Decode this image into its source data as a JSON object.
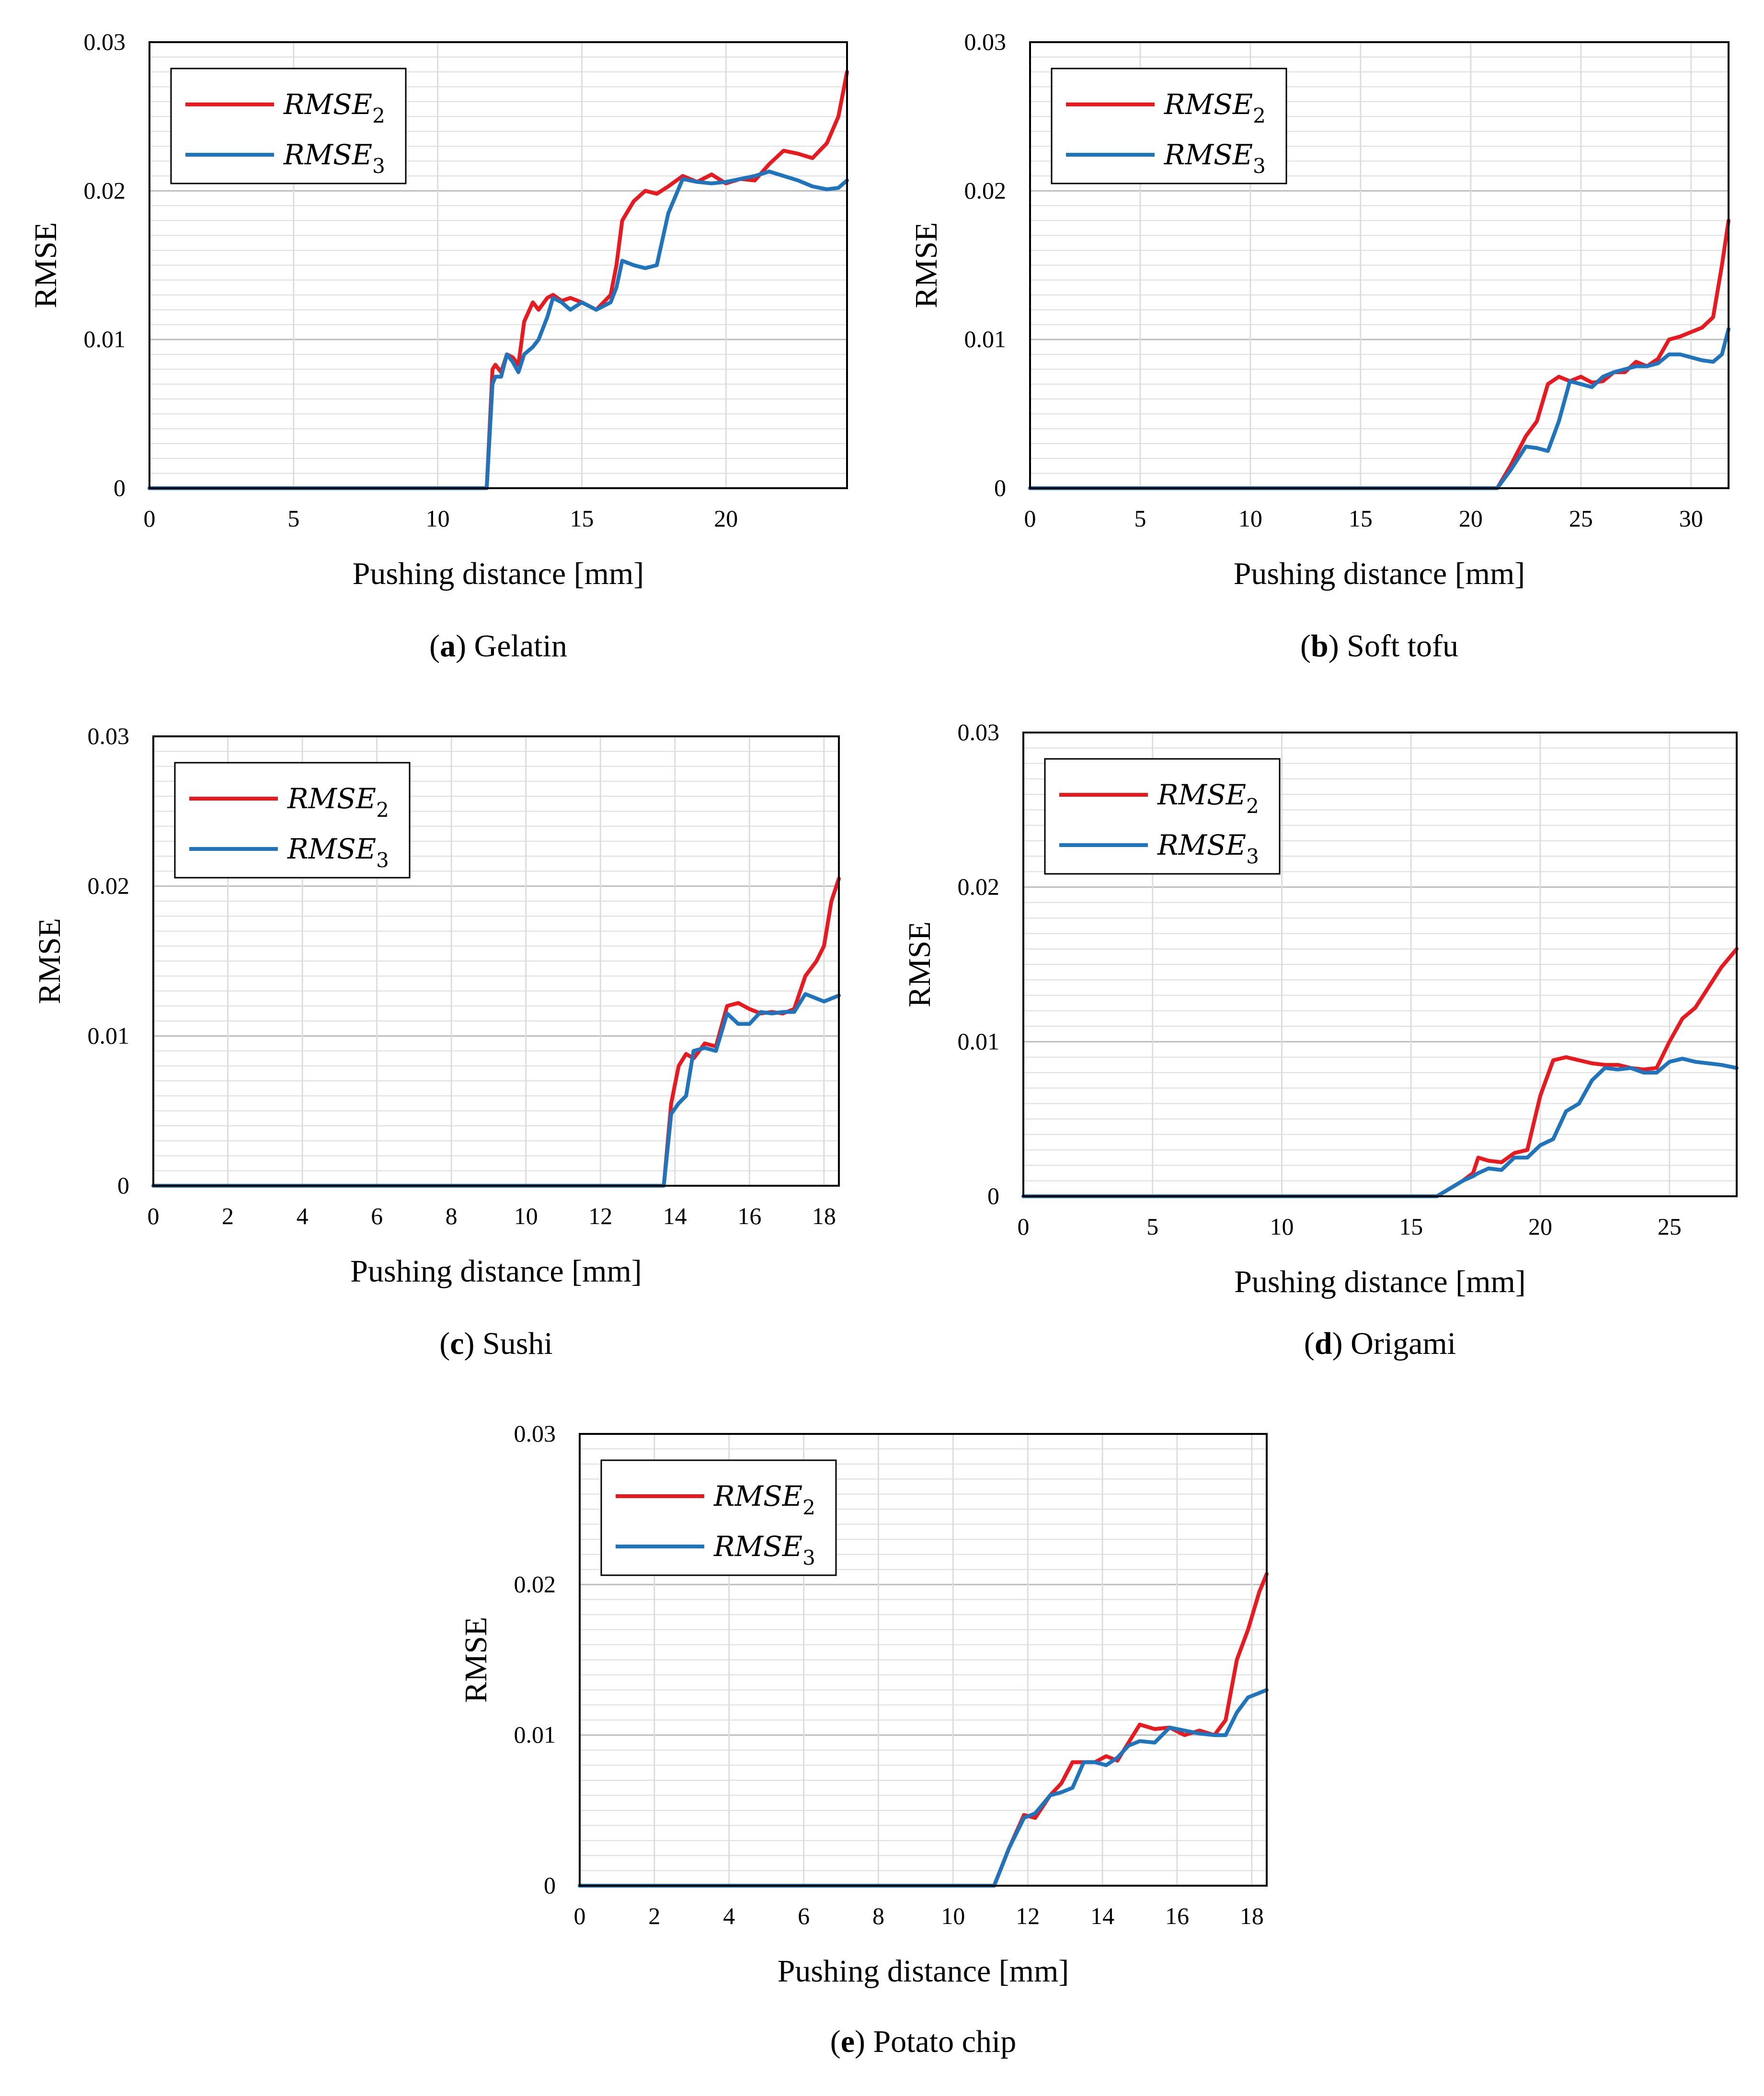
{
  "figure": {
    "colors": {
      "rmse2": "#e8191f",
      "rmse3": "#1f74bc",
      "grid_minor": "#dddddd",
      "grid_major": "#bdbdbd"
    },
    "legend": {
      "series": [
        {
          "name": "RMSE",
          "sub": "2",
          "color": "#e8191f"
        },
        {
          "name": "RMSE",
          "sub": "3",
          "color": "#1f74bc"
        }
      ]
    }
  },
  "chart_data": [
    {
      "type": "line",
      "caption": {
        "letter": "a",
        "text": "Gelatin"
      },
      "xlabel": "Pushing distance [mm]",
      "ylabel": "RMSE",
      "xlim": [
        0,
        24.2
      ],
      "ylim": [
        0,
        0.03
      ],
      "xticks": [
        0,
        5,
        10,
        15,
        20
      ],
      "yticks": [
        0,
        0.01,
        0.02,
        0.03
      ],
      "yticklabels": [
        "0",
        "0.01",
        "0.02",
        "0.03"
      ],
      "legend_position": "top-left",
      "series": [
        {
          "name": "RMSE2",
          "x": [
            0,
            11.7,
            11.9,
            12.0,
            12.2,
            12.4,
            12.6,
            12.8,
            13.0,
            13.3,
            13.5,
            13.8,
            14.0,
            14.3,
            14.6,
            15.0,
            15.5,
            16.0,
            16.2,
            16.4,
            16.8,
            17.2,
            17.6,
            18.0,
            18.5,
            19.0,
            19.5,
            20.0,
            20.5,
            21.0,
            21.5,
            22.0,
            22.5,
            23.0,
            23.5,
            23.9,
            24.2
          ],
          "values": [
            0,
            0,
            0.008,
            0.0083,
            0.0078,
            0.009,
            0.0088,
            0.0083,
            0.0112,
            0.0125,
            0.012,
            0.0128,
            0.013,
            0.0126,
            0.0128,
            0.0125,
            0.012,
            0.013,
            0.015,
            0.018,
            0.0193,
            0.02,
            0.0198,
            0.0203,
            0.021,
            0.0206,
            0.0211,
            0.0205,
            0.0208,
            0.0207,
            0.0218,
            0.0227,
            0.0225,
            0.0222,
            0.0232,
            0.025,
            0.028
          ]
        },
        {
          "name": "RMSE3",
          "x": [
            0,
            11.7,
            11.9,
            12.0,
            12.2,
            12.4,
            12.6,
            12.8,
            13.0,
            13.3,
            13.5,
            13.8,
            14.0,
            14.3,
            14.6,
            15.0,
            15.5,
            16.0,
            16.2,
            16.4,
            16.8,
            17.2,
            17.6,
            18.0,
            18.5,
            19.0,
            19.5,
            20.0,
            20.5,
            21.0,
            21.5,
            22.0,
            22.5,
            23.0,
            23.5,
            23.9,
            24.2
          ],
          "values": [
            0,
            0,
            0.007,
            0.0075,
            0.0075,
            0.009,
            0.0085,
            0.0078,
            0.009,
            0.0095,
            0.01,
            0.0115,
            0.0128,
            0.0125,
            0.012,
            0.0125,
            0.012,
            0.0125,
            0.0135,
            0.0153,
            0.015,
            0.0148,
            0.015,
            0.0185,
            0.0208,
            0.0206,
            0.0205,
            0.0206,
            0.0208,
            0.021,
            0.0213,
            0.021,
            0.0207,
            0.0203,
            0.0201,
            0.0202,
            0.0207
          ]
        }
      ]
    },
    {
      "type": "line",
      "caption": {
        "letter": "b",
        "text": "Soft tofu"
      },
      "xlabel": "Pushing distance [mm]",
      "ylabel": "RMSE",
      "xlim": [
        0,
        31.7
      ],
      "ylim": [
        0,
        0.03
      ],
      "xticks": [
        0,
        5,
        10,
        15,
        20,
        25,
        30
      ],
      "yticks": [
        0,
        0.01,
        0.02,
        0.03
      ],
      "yticklabels": [
        "0",
        "0.01",
        "0.02",
        "0.03"
      ],
      "legend_position": "top-left",
      "series": [
        {
          "name": "RMSE2",
          "x": [
            0,
            21.2,
            21.8,
            22.5,
            23.0,
            23.5,
            24.0,
            24.5,
            25.0,
            25.5,
            26.0,
            26.5,
            27.0,
            27.5,
            28.0,
            28.5,
            29.0,
            29.5,
            30.0,
            30.5,
            31.0,
            31.4,
            31.7
          ],
          "values": [
            0,
            0,
            0.0015,
            0.0035,
            0.0045,
            0.007,
            0.0075,
            0.0072,
            0.0075,
            0.0071,
            0.0072,
            0.0078,
            0.0078,
            0.0085,
            0.0082,
            0.0087,
            0.01,
            0.0102,
            0.0105,
            0.0108,
            0.0115,
            0.015,
            0.018
          ]
        },
        {
          "name": "RMSE3",
          "x": [
            0,
            21.2,
            21.8,
            22.5,
            23.0,
            23.5,
            24.0,
            24.5,
            25.0,
            25.5,
            26.0,
            26.5,
            27.0,
            27.5,
            28.0,
            28.5,
            29.0,
            29.5,
            30.0,
            30.5,
            31.0,
            31.4,
            31.7
          ],
          "values": [
            0,
            0,
            0.0012,
            0.0028,
            0.0027,
            0.0025,
            0.0045,
            0.0072,
            0.007,
            0.0068,
            0.0075,
            0.0078,
            0.008,
            0.0082,
            0.0082,
            0.0084,
            0.009,
            0.009,
            0.0088,
            0.0086,
            0.0085,
            0.009,
            0.0107
          ]
        }
      ]
    },
    {
      "type": "line",
      "caption": {
        "letter": "c",
        "text": "Sushi"
      },
      "xlabel": "Pushing distance [mm]",
      "ylabel": "RMSE",
      "xlim": [
        0,
        18.4
      ],
      "ylim": [
        0,
        0.03
      ],
      "xticks": [
        0,
        2,
        4,
        6,
        8,
        10,
        12,
        14,
        16,
        18
      ],
      "yticks": [
        0,
        0.01,
        0.02,
        0.03
      ],
      "yticklabels": [
        "0",
        "0.01",
        "0.02",
        "0.03"
      ],
      "legend_position": "top-left",
      "series": [
        {
          "name": "RMSE2",
          "x": [
            0,
            13.7,
            13.9,
            14.1,
            14.3,
            14.5,
            14.8,
            15.1,
            15.4,
            15.7,
            16.0,
            16.3,
            16.6,
            16.9,
            17.2,
            17.5,
            17.8,
            18.0,
            18.2,
            18.4
          ],
          "values": [
            0,
            0,
            0.0055,
            0.008,
            0.0088,
            0.0085,
            0.0095,
            0.0093,
            0.012,
            0.0122,
            0.0118,
            0.0115,
            0.0116,
            0.0115,
            0.0118,
            0.014,
            0.015,
            0.016,
            0.019,
            0.0205
          ]
        },
        {
          "name": "RMSE3",
          "x": [
            0,
            13.7,
            13.9,
            14.1,
            14.3,
            14.5,
            14.8,
            15.1,
            15.4,
            15.7,
            16.0,
            16.3,
            16.6,
            16.9,
            17.2,
            17.5,
            17.8,
            18.0,
            18.2,
            18.4
          ],
          "values": [
            0,
            0,
            0.0048,
            0.0055,
            0.006,
            0.009,
            0.0092,
            0.009,
            0.0115,
            0.0108,
            0.0108,
            0.0116,
            0.0115,
            0.0116,
            0.0116,
            0.0128,
            0.0125,
            0.0123,
            0.0125,
            0.0127
          ]
        }
      ]
    },
    {
      "type": "line",
      "caption": {
        "letter": "d",
        "text": "Origami"
      },
      "xlabel": "Pushing distance [mm]",
      "ylabel": "RMSE",
      "xlim": [
        0,
        27.6
      ],
      "ylim": [
        0,
        0.03
      ],
      "xticks": [
        0,
        5,
        10,
        15,
        20,
        25
      ],
      "yticks": [
        0,
        0.01,
        0.02,
        0.03
      ],
      "yticklabels": [
        "0",
        "0.01",
        "0.02",
        "0.03"
      ],
      "legend_position": "top-left",
      "series": [
        {
          "name": "RMSE2",
          "x": [
            0,
            16.0,
            16.5,
            17.0,
            17.4,
            17.6,
            18.0,
            18.5,
            19.0,
            19.5,
            20.0,
            20.5,
            21.0,
            21.5,
            22.0,
            22.5,
            23.0,
            23.5,
            24.0,
            24.5,
            25.0,
            25.5,
            26.0,
            26.5,
            27.0,
            27.6
          ],
          "values": [
            0,
            0,
            0.0005,
            0.001,
            0.0015,
            0.0025,
            0.0023,
            0.0022,
            0.0028,
            0.003,
            0.0065,
            0.0088,
            0.009,
            0.0088,
            0.0086,
            0.0085,
            0.0085,
            0.0083,
            0.0082,
            0.0083,
            0.01,
            0.0115,
            0.0122,
            0.0135,
            0.0148,
            0.016
          ]
        },
        {
          "name": "RMSE3",
          "x": [
            0,
            16.0,
            16.5,
            17.0,
            17.4,
            17.6,
            18.0,
            18.5,
            19.0,
            19.5,
            20.0,
            20.5,
            21.0,
            21.5,
            22.0,
            22.5,
            23.0,
            23.5,
            24.0,
            24.5,
            25.0,
            25.5,
            26.0,
            26.5,
            27.0,
            27.6
          ],
          "values": [
            0,
            0,
            0.0005,
            0.001,
            0.0013,
            0.0015,
            0.0018,
            0.0017,
            0.0025,
            0.0025,
            0.0033,
            0.0037,
            0.0055,
            0.006,
            0.0075,
            0.0083,
            0.0082,
            0.0083,
            0.008,
            0.008,
            0.0087,
            0.0089,
            0.0087,
            0.0086,
            0.0085,
            0.0083
          ]
        }
      ]
    },
    {
      "type": "line",
      "caption": {
        "letter": "e",
        "text": "Potato chip"
      },
      "xlabel": "Pushing distance [mm]",
      "ylabel": "RMSE",
      "xlim": [
        0,
        18.4
      ],
      "ylim": [
        0,
        0.03
      ],
      "xticks": [
        0,
        2,
        4,
        6,
        8,
        10,
        12,
        14,
        16,
        18
      ],
      "yticks": [
        0,
        0.01,
        0.02,
        0.03
      ],
      "yticklabels": [
        "0",
        "0.01",
        "0.02",
        "0.03"
      ],
      "legend_position": "top-left",
      "series": [
        {
          "name": "RMSE2",
          "x": [
            0,
            11.1,
            11.5,
            11.9,
            12.2,
            12.6,
            12.9,
            13.2,
            13.5,
            13.8,
            14.1,
            14.4,
            14.7,
            15.0,
            15.4,
            15.8,
            16.2,
            16.6,
            17.0,
            17.3,
            17.6,
            17.9,
            18.2,
            18.4
          ],
          "values": [
            0,
            0,
            0.0025,
            0.0047,
            0.0045,
            0.006,
            0.0068,
            0.0082,
            0.0082,
            0.0082,
            0.0086,
            0.0083,
            0.0095,
            0.0107,
            0.0104,
            0.0105,
            0.01,
            0.0103,
            0.01,
            0.011,
            0.015,
            0.017,
            0.0195,
            0.0207
          ]
        },
        {
          "name": "RMSE3",
          "x": [
            0,
            11.1,
            11.5,
            11.9,
            12.2,
            12.6,
            12.9,
            13.2,
            13.5,
            13.8,
            14.1,
            14.4,
            14.7,
            15.0,
            15.4,
            15.8,
            16.2,
            16.6,
            17.0,
            17.3,
            17.6,
            17.9,
            18.2,
            18.4
          ],
          "values": [
            0,
            0,
            0.0025,
            0.0045,
            0.0048,
            0.006,
            0.0062,
            0.0065,
            0.0082,
            0.0082,
            0.008,
            0.0085,
            0.0093,
            0.0096,
            0.0095,
            0.0105,
            0.0103,
            0.0101,
            0.01,
            0.01,
            0.0115,
            0.0125,
            0.0128,
            0.013
          ]
        }
      ]
    }
  ]
}
